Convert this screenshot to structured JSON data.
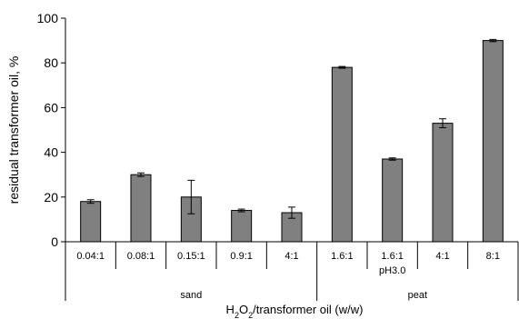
{
  "chart_data": {
    "type": "bar",
    "categories": [
      "0.04:1",
      "0.08:1",
      "0.15:1",
      "0.9:1",
      "4:1",
      "1.6:1",
      "1.6:1",
      "4:1",
      "8:1"
    ],
    "category_sublabels": [
      "",
      "",
      "",
      "",
      "",
      "",
      "pH3.0",
      "",
      ""
    ],
    "groups": [
      {
        "name": "sand",
        "start": 0,
        "end": 4
      },
      {
        "name": "peat",
        "start": 5,
        "end": 8
      }
    ],
    "values": [
      18,
      30,
      20,
      14,
      13,
      78,
      37,
      53,
      90
    ],
    "errors": [
      0.8,
      0.8,
      7.5,
      0.6,
      2.5,
      0.4,
      0.5,
      2.0,
      0.5
    ],
    "ylabel": "residual transformer oil, %",
    "xlabel_parts": [
      "H",
      "2",
      "O",
      "2",
      "/transformer oil (w/w)"
    ],
    "yticks": [
      0,
      20,
      40,
      60,
      80,
      100
    ],
    "ylim": [
      0,
      100
    ],
    "bar_color": "#808080",
    "grid": false
  }
}
